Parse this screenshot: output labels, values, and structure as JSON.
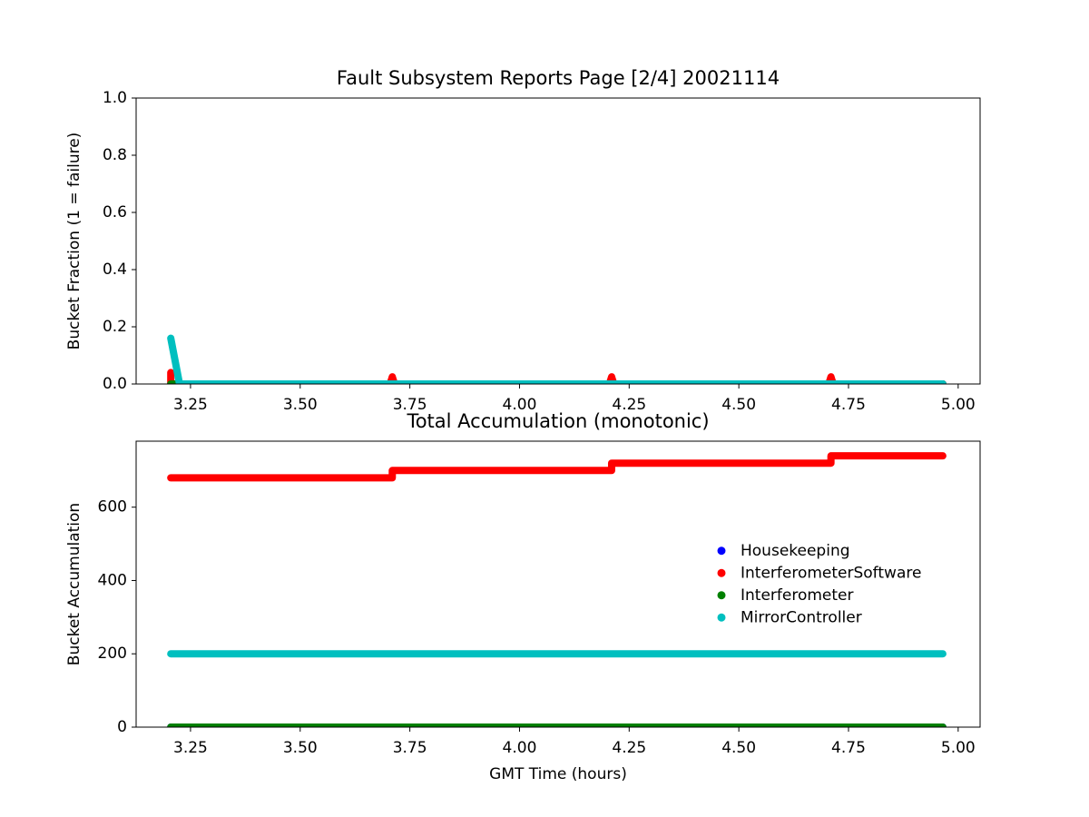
{
  "chart_data": [
    {
      "type": "line",
      "title": "Fault Subsystem Reports Page [2/4] 20021114",
      "y_label": "Bucket Fraction (1 = failure)",
      "xlim": [
        3.126,
        5.05
      ],
      "ylim": [
        0,
        1
      ],
      "xticks": [
        3.25,
        {
          "value": 3.5,
          "label": "3.50"
        },
        3.75,
        {
          "value": 4,
          "label": "4.00"
        },
        4.25,
        {
          "value": 4.5,
          "label": "4.50"
        },
        4.75,
        {
          "value": 5,
          "label": "5.00"
        }
      ],
      "yticks": [
        {
          "value": 0,
          "label": "0.0"
        },
        0.2,
        0.4,
        0.6,
        0.8,
        {
          "value": 1,
          "label": "1.0"
        }
      ],
      "series": [
        {
          "color": "#0000ff",
          "x": [
            3.205,
            4.965
          ],
          "values": [
            0,
            0
          ]
        },
        {
          "color": "#ff0000",
          "x": [
            3.205,
            3.205,
            3.21,
            3.705,
            3.71,
            3.715,
            4.205,
            4.21,
            4.215,
            4.705,
            4.71,
            4.715,
            4.965
          ],
          "values": [
            0.04,
            0,
            0,
            0,
            0.025,
            0,
            0,
            0.025,
            0,
            0,
            0.025,
            0,
            0
          ]
        },
        {
          "color": "#008000",
          "x": [
            3.205,
            4.965
          ],
          "values": [
            0,
            0
          ]
        },
        {
          "color": "#00bfbf",
          "x": [
            3.205,
            3.21,
            3.215,
            3.22,
            3.225,
            4.965
          ],
          "values": [
            0.16,
            0.12,
            0.08,
            0.04,
            0,
            0
          ]
        }
      ]
    },
    {
      "type": "line",
      "title": "Total Accumulation (monotonic)",
      "x_label": "GMT Time (hours)",
      "y_label": "Bucket Accumulation",
      "xlim": [
        3.126,
        5.05
      ],
      "ylim": [
        0,
        780
      ],
      "xticks": [
        3.25,
        {
          "value": 3.5,
          "label": "3.50"
        },
        3.75,
        {
          "value": 4,
          "label": "4.00"
        },
        4.25,
        {
          "value": 4.5,
          "label": "4.50"
        },
        4.75,
        {
          "value": 5,
          "label": "5.00"
        }
      ],
      "yticks": [
        0,
        200,
        400,
        600
      ],
      "legend": "center right",
      "series": [
        {
          "name": "Housekeeping",
          "color": "#0000ff",
          "x": [
            3.205,
            4.965
          ],
          "values": [
            0,
            0
          ]
        },
        {
          "name": "InterferometerSoftware",
          "color": "#ff0000",
          "x": [
            3.205,
            3.71,
            3.71,
            4.21,
            4.21,
            4.71,
            4.71,
            4.965
          ],
          "values": [
            680,
            680,
            700,
            700,
            720,
            720,
            740,
            740
          ]
        },
        {
          "name": "Interferometer",
          "color": "#008000",
          "x": [
            3.205,
            4.965
          ],
          "values": [
            0,
            0
          ]
        },
        {
          "name": "MirrorController",
          "color": "#00bfbf",
          "x": [
            3.205,
            4.965
          ],
          "values": [
            200,
            200
          ]
        }
      ]
    }
  ]
}
